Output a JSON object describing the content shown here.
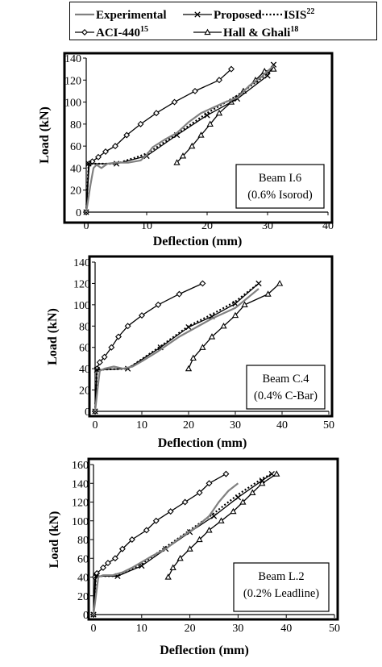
{
  "legend": {
    "entries": [
      {
        "name": "Experimental",
        "style": "gray-line",
        "color": "#808080"
      },
      {
        "name": "Proposed",
        "style": "line-x",
        "color": "#000000"
      },
      {
        "name": "ISIS",
        "sup": "22",
        "style": "dotted",
        "color": "#000000"
      },
      {
        "name": "ACI-440",
        "sup": "15",
        "style": "line-diamond",
        "color": "#000000"
      },
      {
        "name": "Hall & Ghali",
        "sup": "18",
        "style": "line-triangle",
        "color": "#000000"
      }
    ]
  },
  "chart_data": [
    {
      "type": "line",
      "xlabel": "Deflection (mm)",
      "ylabel": "Load (kN)",
      "xlim": [
        0,
        40
      ],
      "ylim": [
        0,
        140
      ],
      "xticks": [
        0,
        10,
        20,
        30,
        40
      ],
      "yticks": [
        0,
        20,
        40,
        60,
        80,
        100,
        120,
        140
      ],
      "annotation": [
        "Beam I.6",
        "(0.6% Isorod)"
      ],
      "annotation_position": "bottom-right",
      "grid": false,
      "series": [
        {
          "name": "Experimental",
          "points": [
            [
              0,
              0
            ],
            [
              0.7,
              25
            ],
            [
              1.2,
              40
            ],
            [
              1.7,
              43
            ],
            [
              2.5,
              40
            ],
            [
              3.5,
              44
            ],
            [
              5,
              45
            ],
            [
              7,
              45
            ],
            [
              9,
              47
            ],
            [
              10,
              52
            ],
            [
              11,
              59
            ],
            [
              13,
              66
            ],
            [
              15,
              72
            ],
            [
              17,
              82
            ],
            [
              19,
              90
            ],
            [
              21,
              95
            ],
            [
              23,
              100
            ],
            [
              25,
              104
            ],
            [
              27,
              115
            ],
            [
              29,
              123
            ],
            [
              31,
              133
            ]
          ]
        },
        {
          "name": "Proposed",
          "points": [
            [
              0,
              0
            ],
            [
              0.4,
              44
            ],
            [
              5,
              44
            ],
            [
              10,
              51
            ],
            [
              15,
              70
            ],
            [
              20,
              88
            ],
            [
              25,
              103
            ],
            [
              30,
              124
            ],
            [
              31,
              134
            ]
          ]
        },
        {
          "name": "ISIS",
          "points": [
            [
              0,
              0
            ],
            [
              0.4,
              44
            ],
            [
              5,
              44
            ],
            [
              10,
              53
            ],
            [
              15,
              71
            ],
            [
              20,
              90
            ],
            [
              25,
              106
            ],
            [
              30,
              126
            ],
            [
              31,
              134
            ]
          ]
        },
        {
          "name": "ACI-440",
          "points": [
            [
              0,
              0
            ],
            [
              0.5,
              44
            ],
            [
              1,
              46
            ],
            [
              2,
              50
            ],
            [
              3.2,
              55
            ],
            [
              4.8,
              60
            ],
            [
              6.7,
              70
            ],
            [
              9,
              80
            ],
            [
              11.6,
              90
            ],
            [
              14.6,
              100
            ],
            [
              18,
              110
            ],
            [
              22,
              120
            ],
            [
              24,
              130
            ]
          ]
        },
        {
          "name": "Hall & Ghali",
          "points": [
            [
              15,
              45
            ],
            [
              16,
              51
            ],
            [
              17.5,
              60
            ],
            [
              19,
              70
            ],
            [
              20.5,
              80
            ],
            [
              22,
              90
            ],
            [
              24,
              100
            ],
            [
              26,
              110
            ],
            [
              28,
              120
            ],
            [
              29.5,
              128
            ],
            [
              31,
              130
            ]
          ]
        }
      ]
    },
    {
      "type": "line",
      "xlabel": "Deflection (mm)",
      "ylabel": "Load (kN)",
      "xlim": [
        0,
        50
      ],
      "ylim": [
        0,
        140
      ],
      "xticks": [
        0,
        10,
        20,
        30,
        40,
        50
      ],
      "yticks": [
        0,
        20,
        40,
        60,
        80,
        100,
        120,
        140
      ],
      "annotation": [
        "Beam C.4",
        "(0.4% C-Bar)"
      ],
      "annotation_position": "bottom-right",
      "grid": false,
      "series": [
        {
          "name": "Experimental",
          "points": [
            [
              0,
              0
            ],
            [
              0.5,
              20
            ],
            [
              1,
              38
            ],
            [
              2,
              40
            ],
            [
              4,
              42
            ],
            [
              6,
              40
            ],
            [
              8,
              42
            ],
            [
              10,
              47
            ],
            [
              13,
              55
            ],
            [
              18,
              70
            ],
            [
              25,
              87
            ],
            [
              30,
              97
            ],
            [
              35,
              115
            ]
          ]
        },
        {
          "name": "Proposed",
          "points": [
            [
              0,
              0
            ],
            [
              0.4,
              39
            ],
            [
              7,
              40
            ],
            [
              14,
              60
            ],
            [
              20,
              79
            ],
            [
              25,
              89
            ],
            [
              30,
              101
            ],
            [
              35,
              120
            ]
          ]
        },
        {
          "name": "ISIS",
          "points": [
            [
              0,
              0
            ],
            [
              0.4,
              39
            ],
            [
              7,
              40
            ],
            [
              14,
              61
            ],
            [
              20,
              80
            ],
            [
              25,
              91
            ],
            [
              30,
              103
            ],
            [
              35,
              120
            ]
          ]
        },
        {
          "name": "ACI-440",
          "points": [
            [
              0,
              0
            ],
            [
              0.4,
              40
            ],
            [
              1,
              46
            ],
            [
              2,
              51
            ],
            [
              3.5,
              60
            ],
            [
              5,
              70
            ],
            [
              7,
              80
            ],
            [
              10,
              90
            ],
            [
              13.5,
              100
            ],
            [
              18,
              110
            ],
            [
              23,
              120
            ]
          ]
        },
        {
          "name": "Hall & Ghali",
          "points": [
            [
              20,
              40
            ],
            [
              21,
              50
            ],
            [
              23,
              60
            ],
            [
              25,
              70
            ],
            [
              27.5,
              80
            ],
            [
              30,
              90
            ],
            [
              32,
              100
            ],
            [
              37,
              110
            ],
            [
              39.5,
              120
            ]
          ]
        }
      ]
    },
    {
      "type": "line",
      "xlabel": "Deflection (mm)",
      "ylabel": "Load (kN)",
      "xlim": [
        0,
        50
      ],
      "ylim": [
        0,
        160
      ],
      "xticks": [
        0,
        10,
        20,
        30,
        40,
        50
      ],
      "yticks": [
        0,
        20,
        40,
        60,
        80,
        100,
        120,
        140,
        160
      ],
      "annotation": [
        "Beam L.2",
        "(0.2% Leadline)"
      ],
      "annotation_position": "bottom-right",
      "grid": false,
      "series": [
        {
          "name": "Experimental",
          "points": [
            [
              0,
              0
            ],
            [
              0.5,
              20
            ],
            [
              1,
              40
            ],
            [
              2,
              42
            ],
            [
              4,
              42
            ],
            [
              6,
              45
            ],
            [
              8,
              50
            ],
            [
              10,
              56
            ],
            [
              12,
              62
            ],
            [
              15,
              70
            ],
            [
              18,
              82
            ],
            [
              21,
              92
            ],
            [
              24,
              105
            ],
            [
              26,
              120
            ],
            [
              28,
              132
            ],
            [
              30,
              140
            ]
          ]
        },
        {
          "name": "Proposed",
          "points": [
            [
              0,
              0
            ],
            [
              0.5,
              41
            ],
            [
              5,
              41
            ],
            [
              10,
              52
            ],
            [
              15,
              70
            ],
            [
              20,
              88
            ],
            [
              25,
              105
            ],
            [
              30,
              125
            ],
            [
              35,
              143
            ],
            [
              37,
              150
            ]
          ]
        },
        {
          "name": "ISIS",
          "points": [
            [
              0,
              0
            ],
            [
              0.5,
              41
            ],
            [
              5,
              41
            ],
            [
              10,
              54
            ],
            [
              15,
              72
            ],
            [
              20,
              90
            ],
            [
              25,
              108
            ],
            [
              30,
              128
            ],
            [
              35,
              145
            ],
            [
              37,
              150
            ]
          ]
        },
        {
          "name": "ACI-440",
          "points": [
            [
              0,
              0
            ],
            [
              0.3,
              40
            ],
            [
              0.7,
              44
            ],
            [
              2,
              50
            ],
            [
              3,
              55
            ],
            [
              4.5,
              60
            ],
            [
              6,
              70
            ],
            [
              8,
              80
            ],
            [
              11,
              90
            ],
            [
              13,
              100
            ],
            [
              16,
              110
            ],
            [
              19,
              120
            ],
            [
              22,
              130
            ],
            [
              24,
              140
            ],
            [
              27.5,
              150
            ]
          ]
        },
        {
          "name": "Hall & Ghali",
          "points": [
            [
              15.5,
              40
            ],
            [
              16.5,
              50
            ],
            [
              18,
              60
            ],
            [
              20,
              70
            ],
            [
              22,
              80
            ],
            [
              24,
              90
            ],
            [
              26.5,
              100
            ],
            [
              29,
              110
            ],
            [
              31,
              120
            ],
            [
              33,
              130
            ],
            [
              35,
              140
            ],
            [
              38,
              150
            ]
          ]
        }
      ]
    }
  ]
}
